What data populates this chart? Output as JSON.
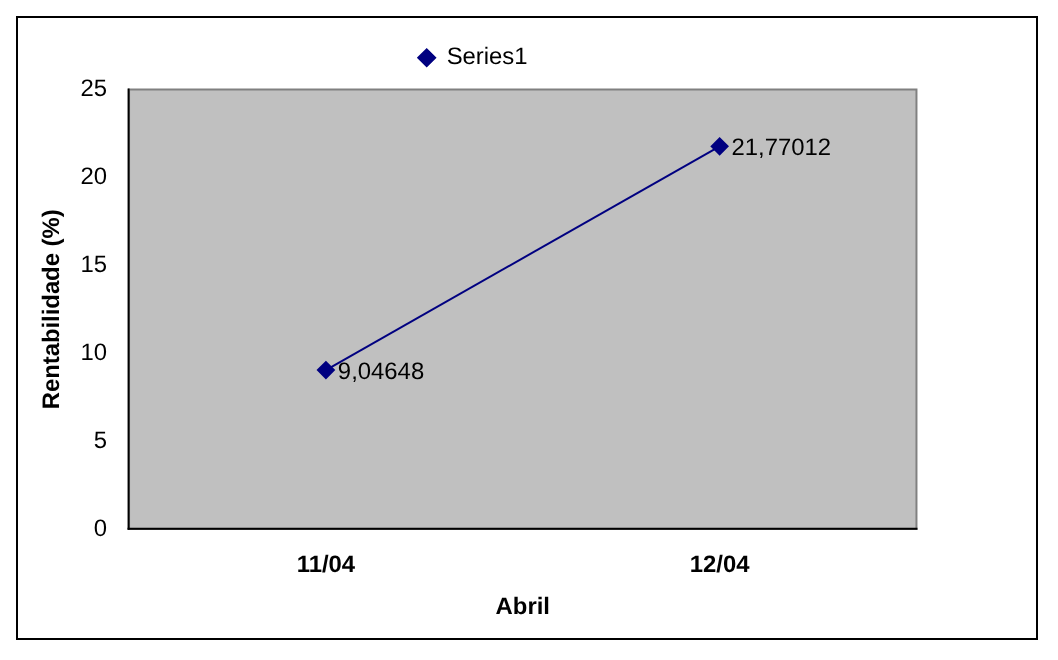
{
  "chart_data": {
    "type": "line",
    "xlabel": "Abril",
    "ylabel": "Rentabilidade (%)",
    "categories": [
      "11/04",
      "12/04"
    ],
    "series": [
      {
        "name": "Series1",
        "color": "#000080",
        "values": [
          9.04648,
          21.77012
        ],
        "value_labels": [
          "9,04648",
          "21,77012"
        ]
      }
    ],
    "ylim": [
      0,
      25
    ],
    "yticks": [
      0,
      5,
      10,
      15,
      20,
      25
    ],
    "grid": false,
    "legend": "top",
    "marker": "diamond",
    "line_style": "solid"
  }
}
